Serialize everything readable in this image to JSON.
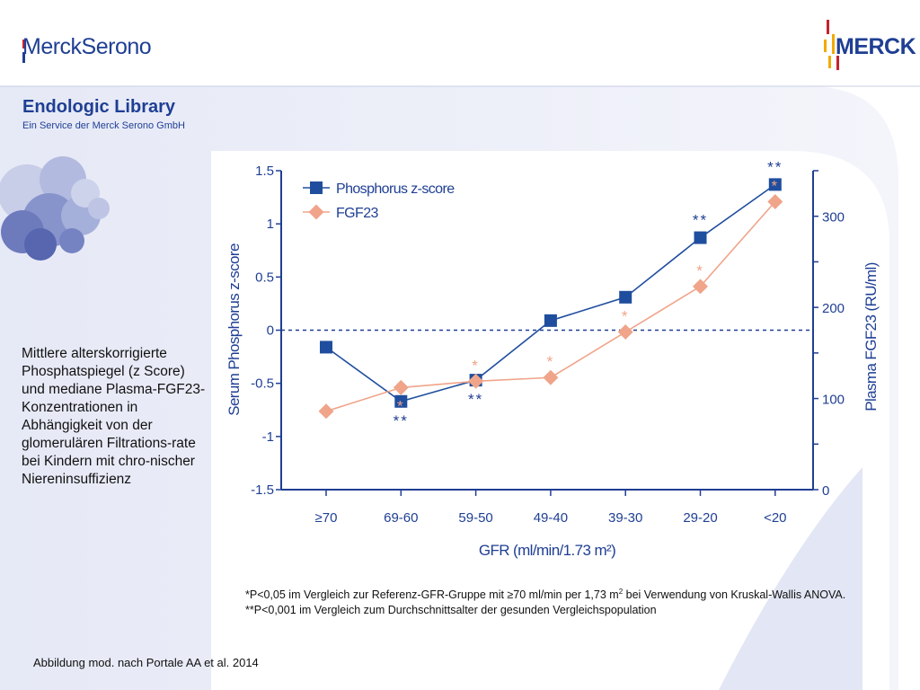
{
  "brand": {
    "left_logo": "MerckSerono",
    "right_logo": "MERCK"
  },
  "library": {
    "title": "Endologic Library",
    "subtitle": "Ein Service der Merck Serono GmbH"
  },
  "caption": "Mittlere alterskorrigierte Phosphatspiegel (z Score) und mediane Plasma-FGF23-Konzentrationen in Abhängigkeit von der glomerulären Filtrations-rate bei Kindern mit chro-nischer Niereninsuffizienz",
  "footnote": {
    "part1": "*P<0,05 im Vergleich zur Referenz-GFR-Gruppe mit ≥70 ml/min per 1,73 m",
    "sup": "2",
    "part2": " bei Verwendung von Kruskal-Wallis ANOVA. **P<0,001 im Vergleich zum Durchschnittsalter der gesunden Vergleichspopulation"
  },
  "source": "Abbildung mod. nach Portale AA et al. 2014",
  "chart_data": {
    "type": "line",
    "categories": [
      "≥70",
      "69-60",
      "59-50",
      "49-40",
      "39-30",
      "29-20",
      "<20"
    ],
    "xlabel": "GFR (ml/min/1.73 m²)",
    "ylabel": "Serum Phosphorus z-score",
    "y2label": "Plasma FGF23 (RU/ml)",
    "ylim": [
      -1.5,
      1.5
    ],
    "yticks": [
      "-1.5",
      "-1",
      "-0.5",
      "0",
      "0.5",
      "1",
      "1.5"
    ],
    "yticks_values": [
      -1.5,
      -1,
      -0.5,
      0,
      0.5,
      1,
      1.5
    ],
    "y2lim": [
      0,
      350
    ],
    "y2ticks": [
      "0",
      "100",
      "200",
      "300"
    ],
    "y2ticks_values": [
      0,
      100,
      200,
      300
    ],
    "reference_line": 0,
    "series": [
      {
        "name": "Phosphorus z-score",
        "axis": "left",
        "color": "#1f4e9e",
        "marker": "square",
        "values": [
          -0.16,
          -0.67,
          -0.47,
          0.09,
          0.31,
          0.87,
          1.37
        ],
        "annotations": [
          "",
          "**",
          "**",
          "",
          "",
          "**",
          "**"
        ]
      },
      {
        "name": "FGF23",
        "axis": "right",
        "color": "#f0a48a",
        "marker": "diamond",
        "values": [
          86,
          112,
          119,
          123,
          173,
          223,
          316
        ],
        "annotations": [
          "",
          "*",
          "*",
          "*",
          "*",
          "*",
          "*"
        ]
      }
    ]
  }
}
